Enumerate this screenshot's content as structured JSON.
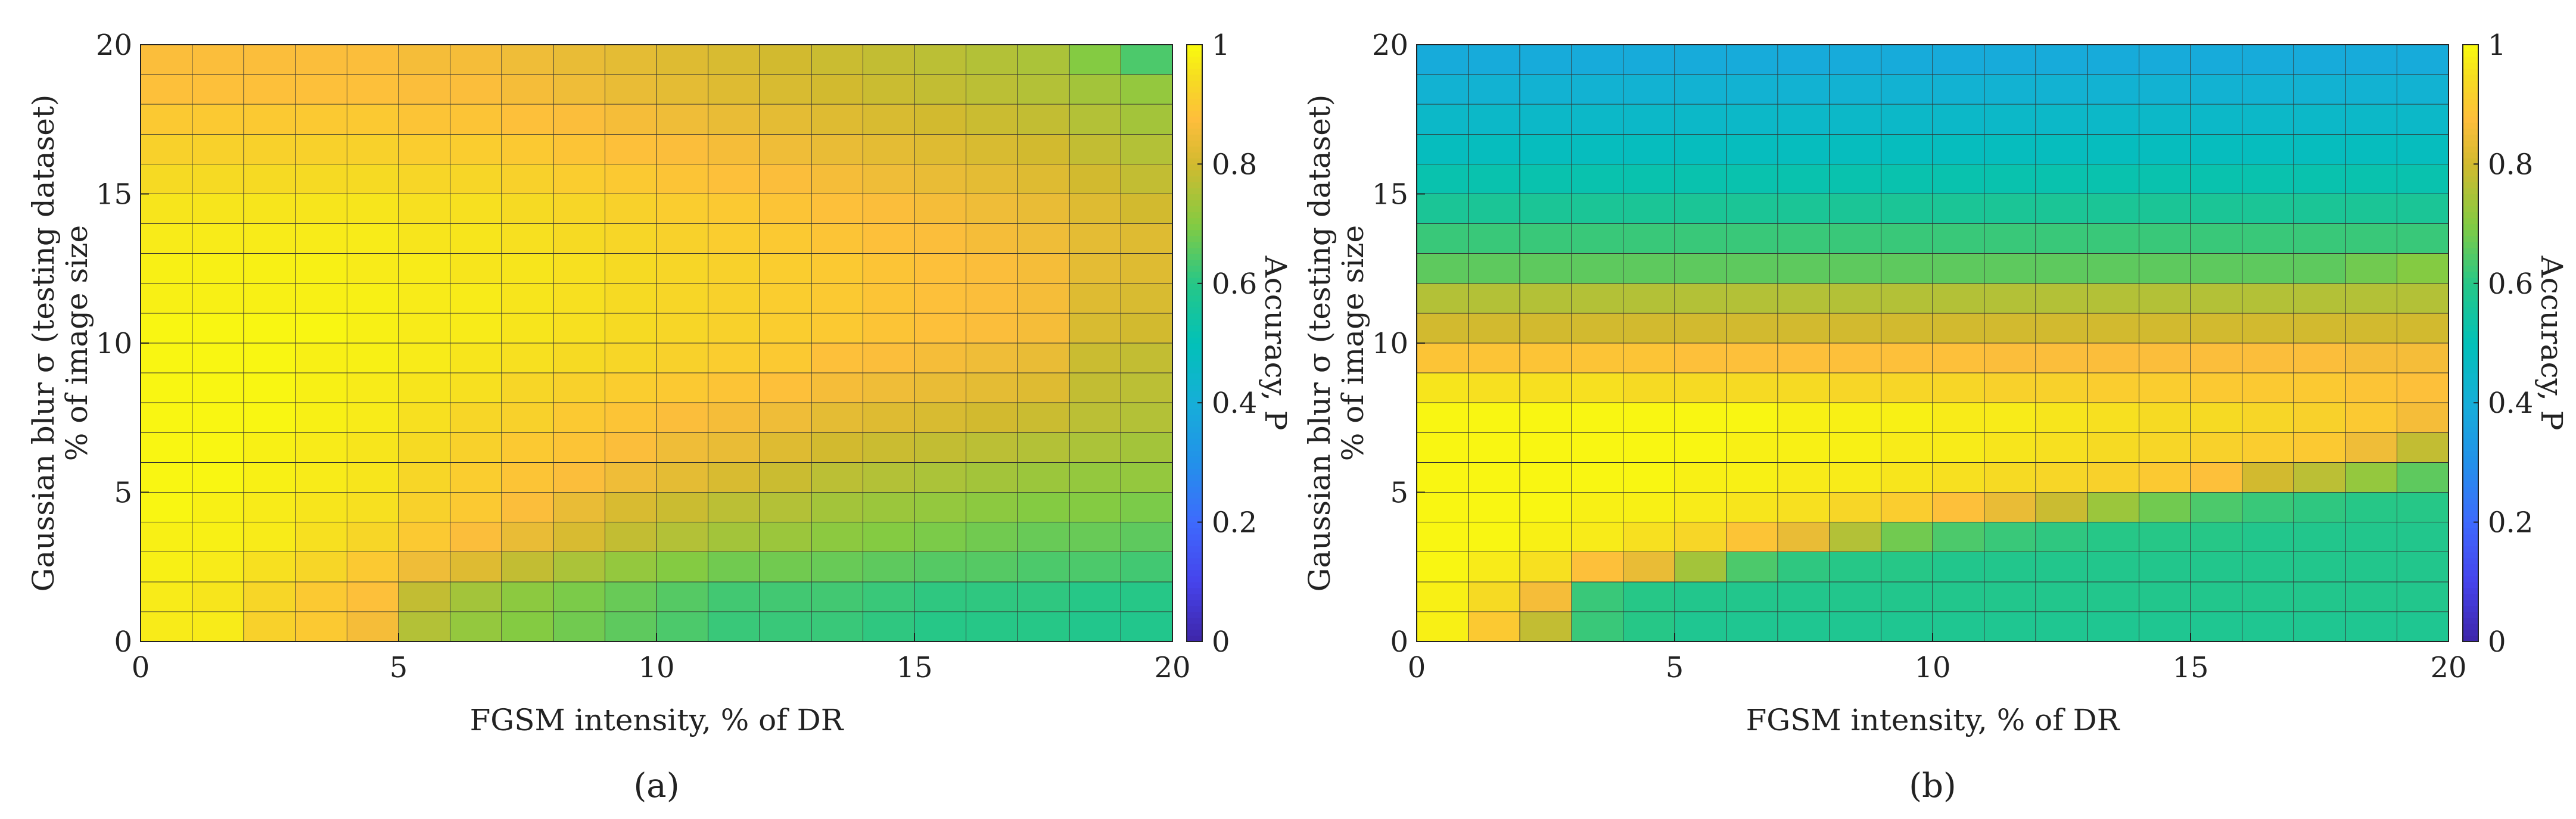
{
  "chart_data": [
    {
      "type": "heatmap",
      "panel": "a",
      "caption": "(a)",
      "xlabel": "FGSM intensity, % of DR",
      "ylabel_line1": "Gaussian blur σ (testing dataset)",
      "ylabel_line2": "% of image size",
      "colorbar_label": "Accuracy, P",
      "xlim": [
        0,
        20
      ],
      "ylim": [
        0,
        20
      ],
      "clim": [
        0,
        1
      ],
      "x_ticks": [
        "0",
        "5",
        "10",
        "15",
        "20"
      ],
      "y_ticks": [
        "0",
        "5",
        "10",
        "15",
        "20"
      ],
      "colorbar_ticks": [
        "0",
        "0.2",
        "0.4",
        "0.6",
        "0.8",
        "1"
      ],
      "x_step": 1,
      "y_step": 1,
      "values_note": "rows ordered from sigma 0-1 (bottom) to 19-20 (top); columns from FGSM 0-1 to 19-20",
      "values": [
        [
          0.97,
          0.97,
          0.92,
          0.9,
          0.86,
          0.76,
          0.72,
          0.7,
          0.68,
          0.66,
          0.64,
          0.62,
          0.62,
          0.62,
          0.61,
          0.6,
          0.6,
          0.6,
          0.59,
          0.59
        ],
        [
          0.97,
          0.96,
          0.93,
          0.9,
          0.88,
          0.78,
          0.74,
          0.71,
          0.69,
          0.67,
          0.65,
          0.63,
          0.63,
          0.63,
          0.62,
          0.61,
          0.61,
          0.61,
          0.6,
          0.6
        ],
        [
          0.98,
          0.97,
          0.95,
          0.93,
          0.9,
          0.85,
          0.82,
          0.78,
          0.75,
          0.72,
          0.7,
          0.68,
          0.68,
          0.67,
          0.66,
          0.65,
          0.65,
          0.64,
          0.64,
          0.63
        ],
        [
          0.98,
          0.98,
          0.97,
          0.95,
          0.93,
          0.9,
          0.87,
          0.84,
          0.81,
          0.78,
          0.76,
          0.74,
          0.73,
          0.71,
          0.7,
          0.69,
          0.68,
          0.67,
          0.67,
          0.66
        ],
        [
          0.99,
          0.98,
          0.97,
          0.96,
          0.95,
          0.92,
          0.9,
          0.87,
          0.84,
          0.81,
          0.79,
          0.77,
          0.76,
          0.74,
          0.73,
          0.72,
          0.71,
          0.7,
          0.7,
          0.69
        ],
        [
          0.99,
          0.99,
          0.98,
          0.97,
          0.96,
          0.93,
          0.91,
          0.89,
          0.87,
          0.85,
          0.83,
          0.81,
          0.79,
          0.77,
          0.76,
          0.75,
          0.74,
          0.73,
          0.72,
          0.72
        ],
        [
          0.99,
          0.99,
          0.98,
          0.97,
          0.96,
          0.94,
          0.92,
          0.9,
          0.89,
          0.87,
          0.85,
          0.84,
          0.82,
          0.8,
          0.79,
          0.78,
          0.77,
          0.76,
          0.75,
          0.74
        ],
        [
          0.99,
          0.99,
          0.99,
          0.98,
          0.97,
          0.95,
          0.93,
          0.92,
          0.9,
          0.89,
          0.87,
          0.86,
          0.85,
          0.83,
          0.82,
          0.81,
          0.8,
          0.79,
          0.77,
          0.76
        ],
        [
          0.99,
          0.99,
          0.99,
          0.98,
          0.97,
          0.96,
          0.95,
          0.93,
          0.92,
          0.91,
          0.9,
          0.89,
          0.88,
          0.86,
          0.85,
          0.84,
          0.83,
          0.82,
          0.78,
          0.77
        ],
        [
          0.99,
          0.99,
          0.99,
          0.98,
          0.98,
          0.97,
          0.96,
          0.95,
          0.94,
          0.93,
          0.92,
          0.91,
          0.9,
          0.88,
          0.87,
          0.86,
          0.85,
          0.84,
          0.79,
          0.78
        ],
        [
          0.99,
          0.99,
          0.99,
          0.99,
          0.98,
          0.97,
          0.97,
          0.96,
          0.95,
          0.94,
          0.93,
          0.92,
          0.91,
          0.9,
          0.89,
          0.88,
          0.87,
          0.86,
          0.81,
          0.8
        ],
        [
          0.98,
          0.98,
          0.98,
          0.98,
          0.98,
          0.97,
          0.97,
          0.96,
          0.95,
          0.94,
          0.93,
          0.92,
          0.91,
          0.9,
          0.89,
          0.88,
          0.87,
          0.86,
          0.82,
          0.81
        ],
        [
          0.98,
          0.98,
          0.98,
          0.98,
          0.97,
          0.97,
          0.96,
          0.96,
          0.95,
          0.94,
          0.93,
          0.92,
          0.91,
          0.9,
          0.89,
          0.88,
          0.87,
          0.86,
          0.83,
          0.82
        ],
        [
          0.97,
          0.97,
          0.97,
          0.97,
          0.97,
          0.96,
          0.96,
          0.95,
          0.94,
          0.93,
          0.92,
          0.91,
          0.9,
          0.89,
          0.88,
          0.87,
          0.86,
          0.85,
          0.83,
          0.82
        ],
        [
          0.96,
          0.96,
          0.96,
          0.96,
          0.96,
          0.95,
          0.95,
          0.94,
          0.93,
          0.92,
          0.91,
          0.9,
          0.89,
          0.88,
          0.87,
          0.86,
          0.85,
          0.84,
          0.82,
          0.8
        ],
        [
          0.94,
          0.94,
          0.94,
          0.94,
          0.94,
          0.93,
          0.93,
          0.92,
          0.91,
          0.9,
          0.89,
          0.88,
          0.87,
          0.86,
          0.85,
          0.84,
          0.83,
          0.82,
          0.8,
          0.78
        ],
        [
          0.92,
          0.92,
          0.92,
          0.92,
          0.92,
          0.91,
          0.91,
          0.9,
          0.89,
          0.88,
          0.87,
          0.86,
          0.85,
          0.84,
          0.83,
          0.82,
          0.81,
          0.8,
          0.78,
          0.76
        ],
        [
          0.9,
          0.9,
          0.9,
          0.9,
          0.9,
          0.89,
          0.89,
          0.88,
          0.87,
          0.86,
          0.85,
          0.84,
          0.83,
          0.82,
          0.81,
          0.8,
          0.79,
          0.78,
          0.76,
          0.74
        ],
        [
          0.88,
          0.88,
          0.88,
          0.88,
          0.88,
          0.87,
          0.87,
          0.86,
          0.85,
          0.84,
          0.83,
          0.82,
          0.81,
          0.8,
          0.79,
          0.78,
          0.77,
          0.76,
          0.74,
          0.72
        ],
        [
          0.87,
          0.87,
          0.87,
          0.87,
          0.87,
          0.86,
          0.86,
          0.85,
          0.84,
          0.83,
          0.82,
          0.81,
          0.8,
          0.79,
          0.78,
          0.77,
          0.76,
          0.75,
          0.7,
          0.64
        ]
      ]
    },
    {
      "type": "heatmap",
      "panel": "b",
      "caption": "(b)",
      "xlabel": "FGSM intensity, % of DR",
      "ylabel_line1": "Gaussian blur σ (testing dataset)",
      "ylabel_line2": "% of image size",
      "colorbar_label": "Accuracy, P",
      "xlim": [
        0,
        20
      ],
      "ylim": [
        0,
        20
      ],
      "clim": [
        0,
        1
      ],
      "x_ticks": [
        "0",
        "5",
        "10",
        "15",
        "20"
      ],
      "y_ticks": [
        "0",
        "5",
        "10",
        "15",
        "20"
      ],
      "colorbar_ticks": [
        "0",
        "0.2",
        "0.4",
        "0.6",
        "0.8",
        "1"
      ],
      "x_step": 1,
      "y_step": 1,
      "values_note": "rows ordered from sigma 0-1 (bottom) to 19-20 (top); columns from FGSM 0-1 to 19-20",
      "values": [
        [
          0.98,
          0.9,
          0.78,
          0.62,
          0.6,
          0.58,
          0.58,
          0.58,
          0.58,
          0.58,
          0.58,
          0.58,
          0.58,
          0.58,
          0.58,
          0.58,
          0.58,
          0.58,
          0.58,
          0.58
        ],
        [
          0.98,
          0.94,
          0.86,
          0.62,
          0.6,
          0.59,
          0.59,
          0.59,
          0.59,
          0.59,
          0.59,
          0.59,
          0.59,
          0.59,
          0.59,
          0.59,
          0.59,
          0.59,
          0.59,
          0.59
        ],
        [
          0.99,
          0.97,
          0.95,
          0.88,
          0.84,
          0.74,
          0.64,
          0.61,
          0.6,
          0.6,
          0.59,
          0.59,
          0.59,
          0.59,
          0.59,
          0.59,
          0.59,
          0.59,
          0.59,
          0.59
        ],
        [
          0.99,
          0.99,
          0.98,
          0.97,
          0.95,
          0.93,
          0.89,
          0.84,
          0.76,
          0.68,
          0.64,
          0.62,
          0.61,
          0.6,
          0.6,
          0.6,
          0.59,
          0.59,
          0.59,
          0.59
        ],
        [
          0.99,
          0.99,
          0.99,
          0.98,
          0.98,
          0.97,
          0.96,
          0.95,
          0.93,
          0.91,
          0.88,
          0.84,
          0.79,
          0.73,
          0.68,
          0.64,
          0.62,
          0.61,
          0.6,
          0.6
        ],
        [
          0.99,
          0.99,
          0.99,
          0.99,
          0.99,
          0.98,
          0.98,
          0.97,
          0.97,
          0.96,
          0.95,
          0.94,
          0.93,
          0.92,
          0.9,
          0.88,
          0.8,
          0.77,
          0.72,
          0.66
        ],
        [
          0.99,
          0.99,
          0.99,
          0.99,
          0.99,
          0.99,
          0.98,
          0.98,
          0.98,
          0.97,
          0.97,
          0.96,
          0.95,
          0.94,
          0.93,
          0.92,
          0.91,
          0.9,
          0.85,
          0.78
        ],
        [
          0.99,
          0.99,
          0.99,
          0.99,
          0.99,
          0.99,
          0.99,
          0.98,
          0.98,
          0.98,
          0.97,
          0.97,
          0.96,
          0.95,
          0.94,
          0.94,
          0.93,
          0.92,
          0.9,
          0.86
        ],
        [
          0.96,
          0.95,
          0.95,
          0.95,
          0.94,
          0.94,
          0.94,
          0.94,
          0.93,
          0.93,
          0.93,
          0.92,
          0.92,
          0.91,
          0.91,
          0.9,
          0.9,
          0.9,
          0.89,
          0.88
        ],
        [
          0.89,
          0.89,
          0.89,
          0.89,
          0.89,
          0.88,
          0.88,
          0.88,
          0.88,
          0.88,
          0.88,
          0.87,
          0.87,
          0.87,
          0.87,
          0.87,
          0.87,
          0.87,
          0.86,
          0.86
        ],
        [
          0.8,
          0.8,
          0.8,
          0.8,
          0.8,
          0.8,
          0.8,
          0.8,
          0.8,
          0.8,
          0.8,
          0.8,
          0.8,
          0.8,
          0.8,
          0.8,
          0.8,
          0.8,
          0.8,
          0.8
        ],
        [
          0.76,
          0.76,
          0.76,
          0.76,
          0.76,
          0.76,
          0.76,
          0.76,
          0.76,
          0.76,
          0.76,
          0.76,
          0.76,
          0.76,
          0.76,
          0.76,
          0.76,
          0.76,
          0.76,
          0.76
        ],
        [
          0.66,
          0.66,
          0.66,
          0.66,
          0.66,
          0.66,
          0.66,
          0.66,
          0.66,
          0.66,
          0.66,
          0.66,
          0.66,
          0.66,
          0.66,
          0.66,
          0.66,
          0.66,
          0.68,
          0.7
        ],
        [
          0.62,
          0.62,
          0.62,
          0.62,
          0.62,
          0.62,
          0.62,
          0.62,
          0.62,
          0.62,
          0.62,
          0.62,
          0.62,
          0.62,
          0.62,
          0.62,
          0.62,
          0.62,
          0.62,
          0.62
        ],
        [
          0.57,
          0.57,
          0.57,
          0.57,
          0.57,
          0.57,
          0.57,
          0.57,
          0.57,
          0.57,
          0.57,
          0.57,
          0.57,
          0.57,
          0.57,
          0.57,
          0.57,
          0.57,
          0.57,
          0.57
        ],
        [
          0.52,
          0.52,
          0.52,
          0.52,
          0.52,
          0.52,
          0.52,
          0.52,
          0.52,
          0.52,
          0.52,
          0.52,
          0.52,
          0.52,
          0.52,
          0.52,
          0.52,
          0.52,
          0.52,
          0.52
        ],
        [
          0.48,
          0.48,
          0.48,
          0.48,
          0.48,
          0.48,
          0.48,
          0.48,
          0.48,
          0.48,
          0.48,
          0.48,
          0.48,
          0.48,
          0.48,
          0.48,
          0.48,
          0.48,
          0.48,
          0.48
        ],
        [
          0.45,
          0.45,
          0.45,
          0.45,
          0.45,
          0.45,
          0.45,
          0.45,
          0.45,
          0.45,
          0.45,
          0.45,
          0.45,
          0.45,
          0.45,
          0.45,
          0.45,
          0.45,
          0.45,
          0.45
        ],
        [
          0.42,
          0.42,
          0.42,
          0.42,
          0.42,
          0.42,
          0.42,
          0.42,
          0.42,
          0.42,
          0.42,
          0.42,
          0.42,
          0.42,
          0.42,
          0.42,
          0.42,
          0.42,
          0.42,
          0.42
        ],
        [
          0.39,
          0.39,
          0.39,
          0.39,
          0.39,
          0.39,
          0.39,
          0.39,
          0.39,
          0.39,
          0.39,
          0.39,
          0.39,
          0.39,
          0.39,
          0.39,
          0.39,
          0.39,
          0.39,
          0.39
        ]
      ]
    }
  ]
}
